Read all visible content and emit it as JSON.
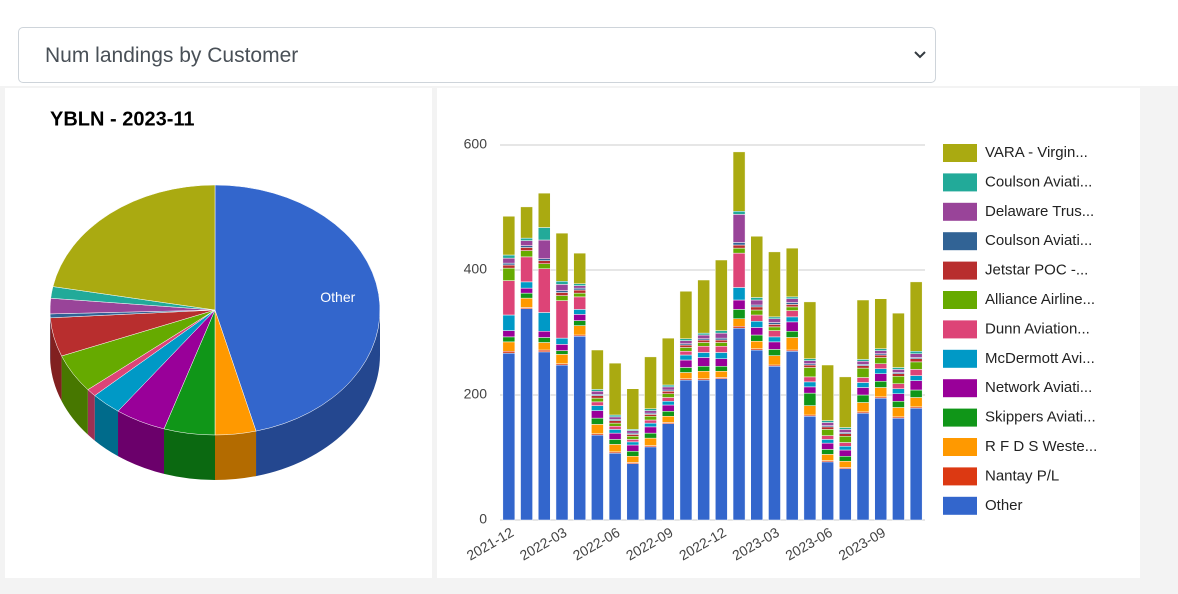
{
  "dropdown": {
    "selected": "Num landings by Customer"
  },
  "chart_data": [
    {
      "type": "pie",
      "title": "YBLN - 2023-11",
      "categories": [
        "Other",
        null,
        null,
        null,
        null,
        null,
        null,
        null,
        null,
        null,
        null,
        null
      ],
      "values": [
        46,
        4,
        5,
        5,
        3,
        1,
        5,
        5,
        0.5,
        2,
        1.5,
        22
      ],
      "colors": [
        "#3366cc",
        "#ff9900",
        "#109618",
        "#990099",
        "#0099c6",
        "#dd4477",
        "#66aa00",
        "#b82e2e",
        "#316395",
        "#994499",
        "#22aa99",
        "#aaaa11"
      ]
    },
    {
      "type": "bar",
      "stacked": true,
      "grid": true,
      "categories": [
        "2021-12",
        null,
        null,
        "2022-03",
        null,
        null,
        "2022-06",
        null,
        null,
        "2022-09",
        null,
        null,
        "2022-12",
        null,
        null,
        "2023-03",
        null,
        null,
        "2023-06",
        null,
        null,
        "2023-09",
        null,
        null
      ],
      "ylim": [
        0,
        600
      ],
      "yticks": [
        0,
        200,
        400,
        600
      ],
      "series": [
        {
          "name": "Other",
          "color": "#3366cc",
          "values": [
            267,
            338,
            269,
            248,
            294,
            136,
            107,
            90,
            117,
            154,
            224,
            224,
            226,
            307,
            272,
            246,
            270,
            166,
            93,
            82,
            171,
            195,
            163,
            179
          ]
        },
        {
          "name": "Nantay P/L",
          "color": "#dc3912",
          "values": [
            3,
            2,
            3,
            2,
            2,
            2,
            2,
            2,
            2,
            2,
            2,
            2,
            2,
            3,
            2,
            2,
            2,
            2,
            2,
            2,
            2,
            2,
            2,
            2
          ]
        },
        {
          "name": "R F D S Weste...",
          "color": "#ff9900",
          "values": [
            15,
            15,
            12,
            15,
            15,
            15,
            12,
            10,
            12,
            10,
            10,
            12,
            10,
            12,
            12,
            15,
            20,
            15,
            10,
            10,
            15,
            15,
            15,
            15
          ]
        },
        {
          "name": "Skippers Aviati...",
          "color": "#109618",
          "values": [
            8,
            8,
            8,
            6,
            8,
            10,
            8,
            8,
            8,
            8,
            8,
            8,
            8,
            15,
            10,
            10,
            10,
            20,
            8,
            8,
            12,
            10,
            10,
            12
          ]
        },
        {
          "name": "Network Aviati...",
          "color": "#990099",
          "values": [
            10,
            8,
            10,
            10,
            10,
            12,
            10,
            10,
            10,
            10,
            12,
            14,
            12,
            15,
            12,
            12,
            15,
            10,
            10,
            10,
            12,
            12,
            12,
            15
          ]
        },
        {
          "name": "McDermott Avi...",
          "color": "#0099c6",
          "values": [
            25,
            10,
            30,
            10,
            8,
            8,
            6,
            5,
            6,
            6,
            8,
            8,
            10,
            20,
            10,
            8,
            8,
            8,
            6,
            6,
            8,
            8,
            8,
            8
          ]
        },
        {
          "name": "Dunn Aviation...",
          "color": "#dd4477",
          "values": [
            55,
            40,
            70,
            60,
            20,
            6,
            5,
            4,
            5,
            6,
            6,
            10,
            10,
            55,
            10,
            10,
            10,
            8,
            6,
            6,
            8,
            8,
            8,
            10
          ]
        },
        {
          "name": "Alliance Airline...",
          "color": "#66aa00",
          "values": [
            20,
            10,
            8,
            8,
            6,
            6,
            5,
            5,
            6,
            6,
            6,
            6,
            6,
            8,
            8,
            6,
            6,
            15,
            10,
            10,
            15,
            10,
            12,
            12
          ]
        },
        {
          "name": "Jetstar POC -...",
          "color": "#b82e2e",
          "values": [
            5,
            5,
            5,
            5,
            5,
            4,
            4,
            3,
            3,
            4,
            4,
            4,
            4,
            5,
            5,
            4,
            4,
            4,
            4,
            4,
            4,
            4,
            4,
            5
          ]
        },
        {
          "name": "Coulson Aviati...",
          "color": "#316395",
          "values": [
            3,
            3,
            3,
            3,
            3,
            2,
            2,
            2,
            2,
            2,
            2,
            2,
            3,
            4,
            3,
            3,
            3,
            2,
            2,
            2,
            2,
            2,
            2,
            2
          ]
        },
        {
          "name": "Delaware Trus...",
          "color": "#994499",
          "values": [
            8,
            8,
            30,
            10,
            4,
            5,
            4,
            4,
            4,
            5,
            5,
            6,
            8,
            45,
            8,
            6,
            6,
            5,
            5,
            5,
            5,
            5,
            5,
            6
          ]
        },
        {
          "name": "Coulson Aviati...",
          "color": "#22aa99",
          "values": [
            5,
            4,
            20,
            5,
            3,
            3,
            3,
            2,
            3,
            3,
            3,
            3,
            4,
            5,
            4,
            3,
            3,
            3,
            3,
            3,
            3,
            3,
            3,
            4
          ]
        },
        {
          "name": "VARA - Virgin...",
          "color": "#aaaa11",
          "values": [
            62,
            50,
            55,
            77,
            49,
            63,
            83,
            65,
            83,
            75,
            76,
            85,
            113,
            95,
            98,
            104,
            78,
            91,
            89,
            81,
            95,
            80,
            87,
            111
          ]
        }
      ]
    }
  ]
}
